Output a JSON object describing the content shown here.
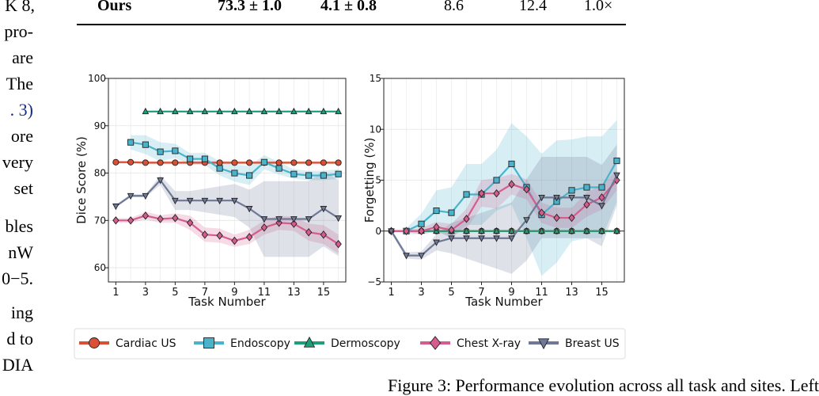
{
  "left_text": [
    "K 8,",
    "pro-",
    "are",
    "The",
    ". 3)",
    "ore",
    "very",
    "set",
    "bles",
    "nW",
    "0−5.",
    "ing",
    "d to",
    "DIA"
  ],
  "table_row": {
    "method": "Ours",
    "c1": "73.3 ± 1.0",
    "c2": "4.1 ± 0.8",
    "c3": "8.6",
    "c4": "12.4",
    "c5": "1.0×"
  },
  "caption_partial": "Figure 3: Performance evolution across all task and sites. Left",
  "legend": [
    {
      "name": "Cardiac US",
      "color": "#d95035",
      "marker": "circle"
    },
    {
      "name": "Endoscopy",
      "color": "#4ab3cc",
      "marker": "square"
    },
    {
      "name": "Dermoscopy",
      "color": "#1f9e7a",
      "marker": "triangle-up"
    },
    {
      "name": "Chest X-ray",
      "color": "#d45d8e",
      "marker": "diamond"
    },
    {
      "name": "Breast US",
      "color": "#6f7896",
      "marker": "triangle-down"
    }
  ],
  "chart_data": [
    {
      "type": "line",
      "xlabel": "Task Number",
      "ylabel": "Dice Score (%)",
      "xlim": [
        0.5,
        16.5
      ],
      "ylim": [
        57,
        100
      ],
      "xticks": [
        1,
        3,
        5,
        7,
        9,
        11,
        13,
        15
      ],
      "yticks": [
        60,
        70,
        80,
        90,
        100
      ],
      "grid": true,
      "series": [
        {
          "name": "Cardiac US",
          "x": [
            1,
            2,
            3,
            4,
            5,
            6,
            7,
            8,
            9,
            10,
            11,
            12,
            13,
            14,
            15,
            16
          ],
          "values": [
            82.3,
            82.3,
            82.2,
            82.2,
            82.2,
            82.2,
            82.2,
            82.2,
            82.2,
            82.2,
            82.2,
            82.2,
            82.2,
            82.2,
            82.2,
            82.2
          ],
          "band": [
            0.3,
            0.3,
            0.3,
            0.3,
            0.3,
            0.3,
            0.3,
            0.3,
            0.3,
            0.3,
            0.3,
            0.3,
            0.3,
            0.3,
            0.3,
            0.3
          ]
        },
        {
          "name": "Endoscopy",
          "x": [
            2,
            3,
            4,
            5,
            6,
            7,
            8,
            9,
            10,
            11,
            12,
            13,
            14,
            15,
            16
          ],
          "values": [
            86.5,
            86,
            84.5,
            84.7,
            83,
            83,
            81,
            80,
            79.5,
            82.3,
            81,
            79.8,
            79.5,
            79.5,
            79.8
          ],
          "band": [
            1.5,
            2,
            2,
            1.5,
            1.2,
            1.3,
            1.5,
            1.8,
            2,
            1.5,
            1.3,
            1,
            1,
            1,
            1
          ]
        },
        {
          "name": "Dermoscopy",
          "x": [
            3,
            4,
            5,
            6,
            7,
            8,
            9,
            10,
            11,
            12,
            13,
            14,
            15,
            16
          ],
          "values": [
            93,
            93,
            93,
            93,
            93,
            93,
            93,
            93,
            93,
            93,
            93,
            93,
            93,
            93
          ],
          "band": [
            0.2,
            0.2,
            0.2,
            0.2,
            0.2,
            0.2,
            0.2,
            0.2,
            0.2,
            0.2,
            0.2,
            0.2,
            0.2,
            0.2
          ]
        },
        {
          "name": "Chest X-ray",
          "x": [
            1,
            2,
            3,
            4,
            5,
            6,
            7,
            8,
            9,
            10,
            11,
            12,
            13,
            14,
            15,
            16
          ],
          "values": [
            70,
            70,
            71,
            70.3,
            70.5,
            69.5,
            67,
            66.8,
            65.7,
            66.5,
            68.5,
            69.5,
            69.3,
            67.5,
            67,
            65
          ],
          "band": [
            0.5,
            0.5,
            0.8,
            0.8,
            1,
            1.5,
            1.5,
            1.5,
            1.3,
            1.5,
            1.5,
            1.5,
            1.5,
            1.8,
            2,
            2
          ]
        },
        {
          "name": "Breast US",
          "x": [
            1,
            2,
            3,
            4,
            5,
            6,
            7,
            8,
            9,
            10,
            11,
            12,
            13,
            14,
            15,
            16
          ],
          "values": [
            73,
            75.2,
            75.2,
            78.5,
            74.2,
            74.2,
            74.2,
            74.2,
            74.2,
            72.5,
            70.3,
            70.3,
            70.3,
            70.3,
            72.5,
            70.5
          ],
          "band": [
            0.3,
            0.3,
            0.3,
            1,
            2,
            2,
            2.5,
            3,
            3.5,
            4,
            8,
            8,
            8,
            8,
            8,
            8
          ]
        }
      ]
    },
    {
      "type": "line",
      "xlabel": "Task Number",
      "ylabel": "Forgetting (%)",
      "xlim": [
        0.5,
        16.5
      ],
      "ylim": [
        -5,
        15
      ],
      "xticks": [
        1,
        3,
        5,
        7,
        9,
        11,
        13,
        15
      ],
      "yticks": [
        -5,
        0,
        5,
        10,
        15
      ],
      "grid": true,
      "series": [
        {
          "name": "Cardiac US",
          "x": [
            1,
            2,
            3,
            4,
            5,
            6,
            7,
            8,
            9,
            10,
            11,
            12,
            13,
            14,
            15,
            16
          ],
          "values": [
            0,
            0,
            0,
            0,
            0,
            0,
            0,
            0,
            0,
            0,
            0,
            0,
            0,
            0,
            0,
            0
          ],
          "band": [
            0.1,
            0.1,
            0.1,
            0.1,
            0.1,
            0.1,
            0.1,
            0.1,
            0.1,
            0.1,
            0.1,
            0.1,
            0.1,
            0.1,
            0.1,
            0.1
          ]
        },
        {
          "name": "Endoscopy",
          "x": [
            2,
            3,
            4,
            5,
            6,
            7,
            8,
            9,
            10,
            11,
            12,
            13,
            14,
            15,
            16
          ],
          "values": [
            0,
            0.7,
            2,
            1.8,
            3.6,
            3.6,
            5,
            6.6,
            4.3,
            1.6,
            2.9,
            4,
            4.3,
            4.3,
            6.9
          ],
          "band": [
            0.3,
            1,
            2,
            2.5,
            3,
            3,
            3,
            4,
            5,
            6,
            6,
            5,
            5,
            5,
            4
          ]
        },
        {
          "name": "Dermoscopy",
          "x": [
            3,
            4,
            5,
            6,
            7,
            8,
            9,
            10,
            11,
            12,
            13,
            14,
            15,
            16
          ],
          "values": [
            0,
            0,
            0,
            0,
            0,
            0,
            0,
            0,
            0,
            0,
            0,
            0,
            0,
            0
          ],
          "band": [
            0.1,
            0.1,
            0.1,
            0.1,
            0.1,
            0.1,
            0.1,
            0.1,
            0.1,
            0.1,
            0.1,
            0.1,
            0.1,
            0.1
          ]
        },
        {
          "name": "Chest X-ray",
          "x": [
            1,
            2,
            3,
            4,
            5,
            6,
            7,
            8,
            9,
            10,
            11,
            12,
            13,
            14,
            15,
            16
          ],
          "values": [
            0,
            0,
            0,
            0.4,
            0.1,
            1.2,
            3.7,
            3.7,
            4.6,
            4.1,
            1.8,
            1.3,
            1.3,
            2.6,
            3.3,
            5
          ],
          "band": [
            0.1,
            0.1,
            0.3,
            0.5,
            0.6,
            1,
            1.3,
            1.5,
            1,
            1,
            1,
            1,
            1,
            1.2,
            1.2,
            1
          ]
        },
        {
          "name": "Breast US",
          "x": [
            1,
            2,
            3,
            4,
            5,
            6,
            7,
            8,
            9,
            10,
            11,
            12,
            13,
            14,
            15,
            16
          ],
          "values": [
            0,
            -2.4,
            -2.4,
            -1.1,
            -0.7,
            -0.7,
            -0.7,
            -0.7,
            -0.7,
            1.1,
            3.3,
            3.3,
            3.3,
            3.3,
            2.5,
            5.5
          ],
          "band": [
            0.2,
            0.3,
            0.4,
            0.8,
            1.5,
            2,
            2.5,
            3,
            3.5,
            4,
            4,
            4,
            4,
            4,
            4,
            3
          ]
        }
      ]
    }
  ]
}
